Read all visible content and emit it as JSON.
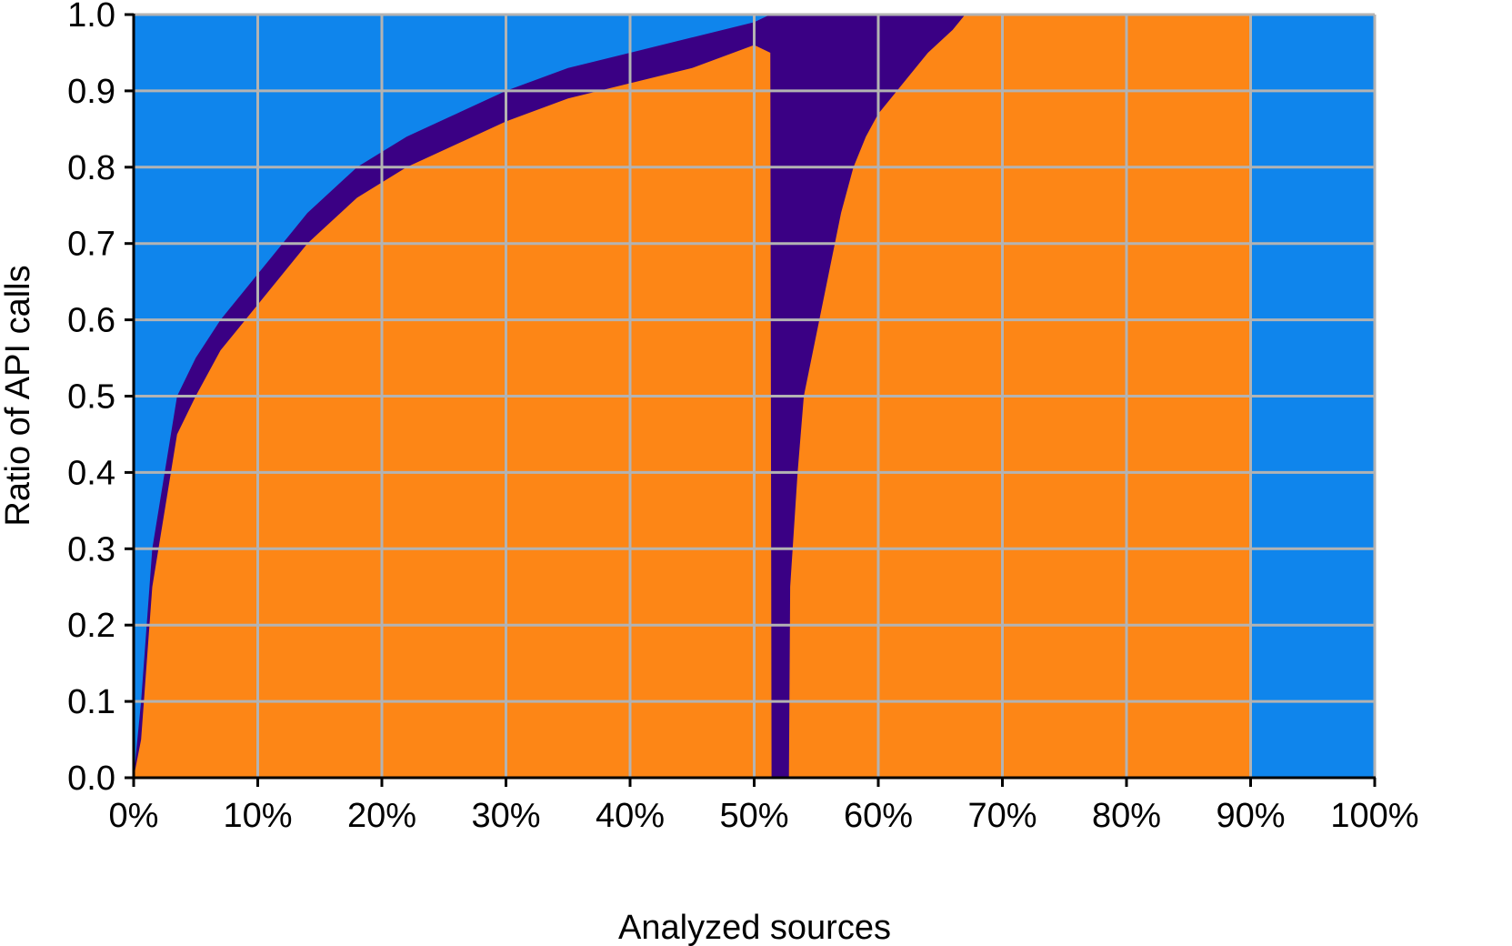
{
  "chart_data": {
    "type": "area",
    "title": "",
    "xlabel": "Analyzed sources",
    "ylabel": "Ratio of API calls",
    "xlim": [
      0,
      100
    ],
    "ylim": [
      0,
      1
    ],
    "x_tick_labels": [
      "0%",
      "10%",
      "20%",
      "30%",
      "40%",
      "50%",
      "60%",
      "70%",
      "80%",
      "90%",
      "100%"
    ],
    "y_tick_labels": [
      "0.0",
      "0.1",
      "0.2",
      "0.3",
      "0.4",
      "0.5",
      "0.6",
      "0.7",
      "0.8",
      "0.9",
      "1.0"
    ],
    "grid": true,
    "legend": "none",
    "colors": {
      "light_blue": "#0f85ec",
      "dark_purple": "#3a0084",
      "orange": "#fd8616",
      "grid": "#b3b3b3"
    },
    "series": [
      {
        "color": "#0f85ec",
        "x": [
          0,
          100
        ],
        "values": [
          1.0,
          1.0
        ]
      },
      {
        "color": "#3a0084",
        "x": [
          0,
          0.6,
          1.5,
          2.5,
          3.5,
          5,
          7,
          10,
          14,
          18,
          22,
          26,
          30,
          35,
          40,
          45,
          50,
          51.3,
          51.4,
          60,
          67,
          67.1,
          100
        ],
        "values": [
          0.0,
          0.1,
          0.3,
          0.4,
          0.5,
          0.55,
          0.6,
          0.66,
          0.74,
          0.8,
          0.84,
          0.87,
          0.9,
          0.93,
          0.95,
          0.97,
          0.99,
          1.0,
          1.0,
          1.0,
          1.0,
          0.0,
          0.0
        ]
      },
      {
        "color": "#fd8616",
        "x": [
          0,
          0.6,
          1.5,
          2.5,
          3.5,
          5,
          7,
          10,
          14,
          18,
          22,
          26,
          30,
          35,
          40,
          45,
          50,
          51.3,
          51.4,
          52.8,
          52.9,
          53.5,
          54,
          55,
          56,
          57,
          58,
          59,
          60,
          62,
          64,
          66,
          67,
          90,
          90.1,
          100
        ],
        "values": [
          0.0,
          0.05,
          0.25,
          0.35,
          0.45,
          0.5,
          0.56,
          0.62,
          0.7,
          0.76,
          0.8,
          0.83,
          0.86,
          0.89,
          0.91,
          0.93,
          0.96,
          0.95,
          0.0,
          0.0,
          0.25,
          0.4,
          0.5,
          0.58,
          0.66,
          0.74,
          0.8,
          0.84,
          0.87,
          0.91,
          0.95,
          0.98,
          1.0,
          1.0,
          0.0,
          0.0
        ]
      }
    ]
  }
}
